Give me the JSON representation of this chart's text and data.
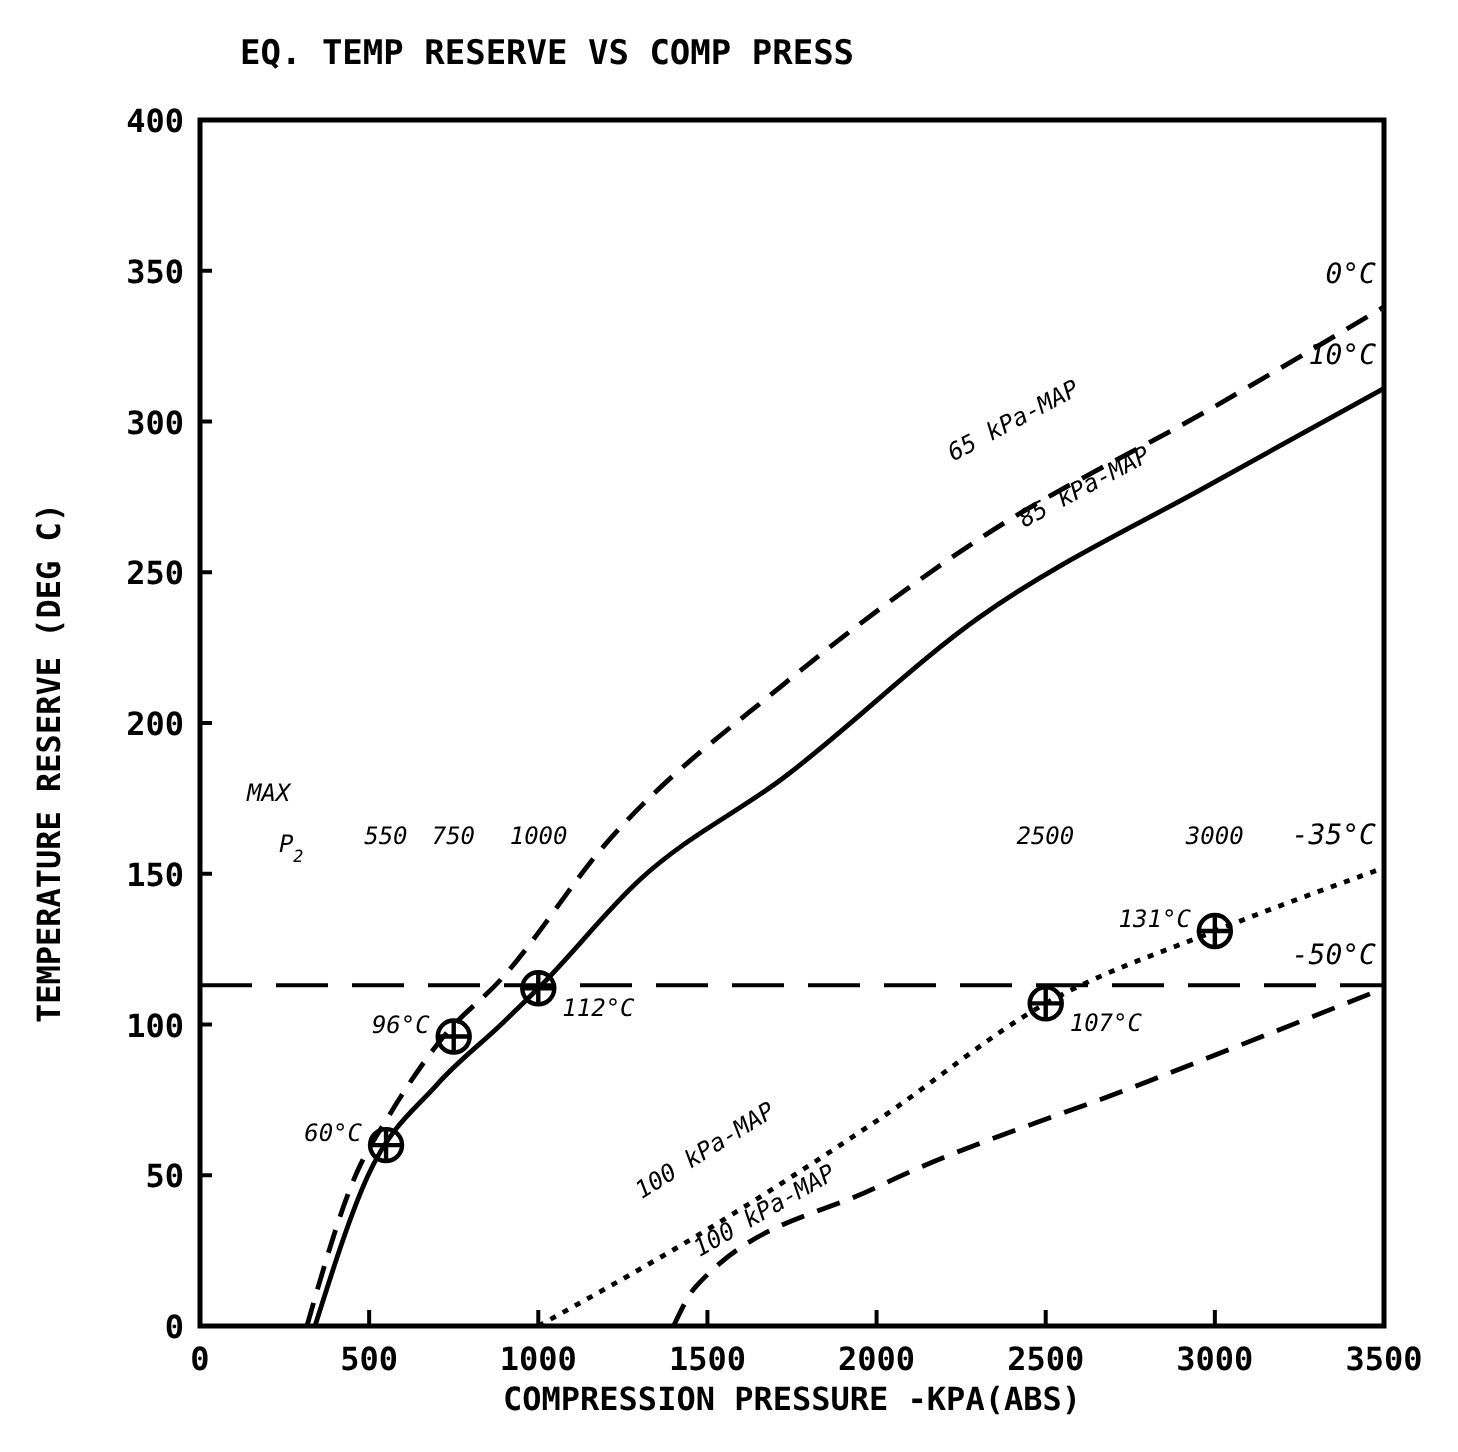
{
  "chart_data": {
    "type": "line",
    "title": "EQ. TEMP RESERVE VS COMP PRESS",
    "xlabel": "COMPRESSION PRESSURE -KPA(ABS)",
    "ylabel": "TEMPERATURE RESERVE (DEG C)",
    "xlim": [
      0,
      3500
    ],
    "xticks": [
      0,
      500,
      1000,
      1500,
      2000,
      2500,
      3000,
      3500
    ],
    "ylim": [
      0,
      400
    ],
    "yticks": [
      0,
      50,
      100,
      150,
      200,
      250,
      300,
      350,
      400
    ],
    "grid": false,
    "marker": "none",
    "series": [
      {
        "name": "0°C",
        "color": "#000000",
        "line_style": "dashed",
        "x": [
          316,
          460,
          560,
          720,
          890,
          1200,
          1727,
          2303,
          3000,
          3500
        ],
        "values": [
          0,
          50,
          70,
          96,
          115,
          160,
          213,
          261,
          305,
          338
        ]
      },
      {
        "name": "10°C",
        "color": "#000000",
        "line_style": "solid",
        "x": [
          340,
          497,
          700,
          890,
          1000,
          1300,
          1727,
          2303,
          3000,
          3500
        ],
        "values": [
          0,
          50,
          80,
          100,
          112,
          148,
          182,
          235,
          280,
          311
        ]
      },
      {
        "name": "-35°C",
        "color": "#000000",
        "line_style": "dotted",
        "x": [
          1000,
          1500,
          2000,
          2500,
          3000,
          3500
        ],
        "values": [
          0,
          32,
          68,
          107,
          131,
          152
        ]
      },
      {
        "name": "-50°C",
        "color": "#000000",
        "line_style": "dashed",
        "x": [
          1400,
          1465,
          2000,
          2800,
          3500
        ],
        "values": [
          0,
          13,
          46,
          81,
          112
        ]
      },
      {
        "type": "scatter",
        "color": "#000000",
        "marker": "cross",
        "x": [
          550,
          750,
          1000,
          2500,
          3000
        ],
        "values": [
          60,
          96,
          112,
          107,
          131
        ],
        "value_labels": [
          "60°C",
          "96°C",
          "112°C",
          "107°C",
          "131°C"
        ]
      }
    ],
    "ref_lines": [
      {
        "axis": "y",
        "value": 113,
        "line_style": "dashed",
        "color": "#000000"
      }
    ],
    "annotations": [
      "MAX",
      "P$_{2}$",
      "550",
      "750",
      "1000",
      "2500",
      "3000",
      "65 kPa-MAP",
      "85 kPa-MAP",
      "100 kPa-MAP",
      "100 kPa-MAP"
    ]
  }
}
